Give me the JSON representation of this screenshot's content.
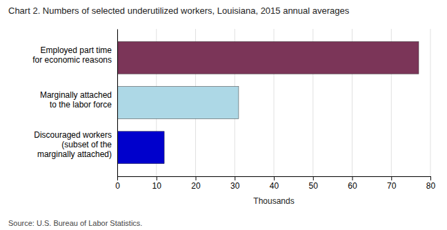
{
  "chart_data": {
    "type": "bar",
    "orientation": "horizontal",
    "title": "Chart 2. Numbers of selected underutilized workers, Louisiana, 2015 annual averages",
    "categories": [
      "Employed part time\nfor economic reasons",
      "Marginally attached\nto the labor force",
      "Discouraged workers\n(subset of the\nmarginally attached)"
    ],
    "values": [
      77,
      31,
      12
    ],
    "colors": [
      "#7B3558",
      "#ADD8E6",
      "#0000CC"
    ],
    "xlabel": "Thousands",
    "xlim": [
      0,
      80
    ],
    "xticks": [
      0,
      10,
      20,
      30,
      40,
      50,
      60,
      70,
      80
    ],
    "grid": true,
    "source": "Source: U.S. Bureau of Labor Statistics."
  }
}
